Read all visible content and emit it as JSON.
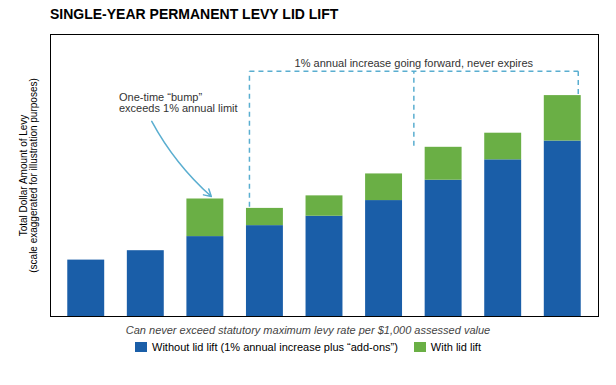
{
  "chart_data": {
    "type": "bar",
    "stacked": true,
    "title": "SINGLE-YEAR PERMANENT LEVY LID LIFT",
    "ylabel": "Total Dollar Amount of Levy\n(scale exaggerated for illustration purposes)",
    "xlabel": "Can never exceed statutory maximum levy rate per $1,000 assessed value",
    "categories": [
      null,
      null,
      null,
      null,
      null,
      null,
      null,
      null,
      null
    ],
    "series": [
      {
        "name": "Without lid lift (1% annual increase plus “add-ons”)",
        "color": "#1A5EA8",
        "values": [
          1.8,
          2.1,
          2.55,
          2.9,
          3.2,
          3.7,
          4.35,
          5.0,
          5.6
        ]
      },
      {
        "name": "With lid lift",
        "color": "#6AAF45",
        "values": [
          0.0,
          0.0,
          1.2,
          0.55,
          0.65,
          0.85,
          1.05,
          0.85,
          1.45
        ]
      }
    ],
    "ylim": [
      0,
      9.0
    ],
    "tick_labels": false,
    "legend": "bottom",
    "annotations": [
      "One-time “bump”\nexceeds 1% annual limit",
      "1% annual increase going forward, never expires"
    ]
  }
}
